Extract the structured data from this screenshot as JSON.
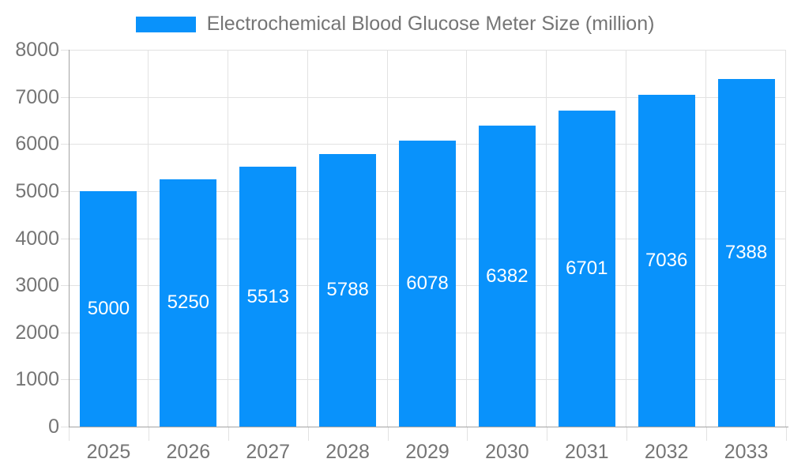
{
  "legend": {
    "label": "Electrochemical Blood Glucose Meter Size (million)"
  },
  "chart_data": {
    "type": "bar",
    "title": "Electrochemical Blood Glucose Meter Size (million)",
    "categories": [
      "2025",
      "2026",
      "2027",
      "2028",
      "2029",
      "2030",
      "2031",
      "2032",
      "2033"
    ],
    "values": [
      5000,
      5250,
      5513,
      5788,
      6078,
      6382,
      6701,
      7036,
      7388
    ],
    "series_name": "Electrochemical Blood Glucose Meter Size (million)",
    "xlabel": "",
    "ylabel": "",
    "ylim": [
      0,
      8000
    ],
    "y_tick_interval": 1000,
    "y_ticks": [
      0,
      1000,
      2000,
      3000,
      4000,
      5000,
      6000,
      7000,
      8000
    ],
    "grid": true,
    "legend_position": "top-center",
    "bar_label_position": "inside-center",
    "colors": {
      "bar": "#0992fb",
      "bar_label": "#ffffff",
      "axis_text": "#757575",
      "legend_text": "#757575",
      "grid_line": "#e2e2e2",
      "axis_line": "#a3a3a3",
      "background": "#ffffff"
    }
  }
}
